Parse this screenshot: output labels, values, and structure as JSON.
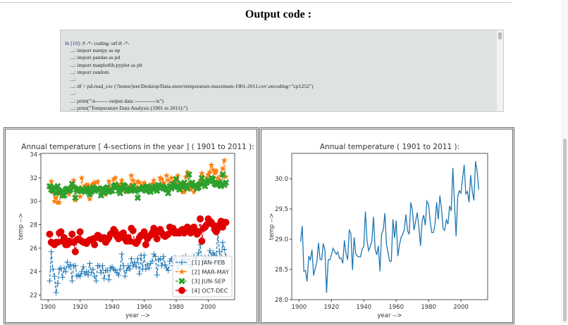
{
  "page": {
    "title": "Output code :",
    "code_lines": [
      {
        "prompt": "In [10]",
        "text": ": # -*- coding: utf-8 -*-"
      },
      {
        "prompt": "",
        "text": "    ...: import numpy as np"
      },
      {
        "prompt": "",
        "text": "    ...: import pandas as pd"
      },
      {
        "prompt": "",
        "text": "    ...: import matplotlib.pyplot as plt"
      },
      {
        "prompt": "",
        "text": "    ...: import random"
      },
      {
        "prompt": "",
        "text": "    ...:"
      },
      {
        "prompt": "",
        "text": "    ...: df = pd.read_csv ('/home/jeet/Desktop/Data-store/temperature-maximum-1901-2011.csv',encoding=\"cp1252\")"
      },
      {
        "prompt": "",
        "text": "    ...:"
      },
      {
        "prompt": "",
        "text": "    ...: print(\"\\n------- output data :-----------\\n\")"
      },
      {
        "prompt": "",
        "text": "    ...: print(\"Temperature Data Analysis (1901 to 2011):\")"
      }
    ]
  },
  "chart_data": [
    {
      "type": "line",
      "title": "Annual temperature [ 4-sections in the year ] ( 1901 to 2011 ):",
      "xlabel": "year -->",
      "ylabel": "temp -->",
      "xlim": [
        1895.5,
        2016.5
      ],
      "ylim": [
        21.6,
        34.1
      ],
      "xticks": [
        1900,
        1920,
        1940,
        1960,
        1980,
        2000
      ],
      "yticks": [
        22,
        24,
        26,
        28,
        30,
        32,
        34
      ],
      "legend_position": "lower-right",
      "x_start": 1901,
      "series": [
        {
          "name": "[1] JAN-FEB",
          "color": "#1f77b4",
          "marker": "plus",
          "linestyle": "dashed",
          "values": [
            23.2,
            25.7,
            24.2,
            23.6,
            22.2,
            23.0,
            24.2,
            24.3,
            23.5,
            24.3,
            24.0,
            24.8,
            24.4,
            24.6,
            23.2,
            24.5,
            24.5,
            23.6,
            23.7,
            23.6,
            24.0,
            24.4,
            23.8,
            24.0,
            23.7,
            24.7,
            23.9,
            24.2,
            23.6,
            23.2,
            24.5,
            24.5,
            23.9,
            24.5,
            23.4,
            24.1,
            24.1,
            23.3,
            24.3,
            24.4,
            24.2,
            24.1,
            23.9,
            23.7,
            24.2,
            25.5,
            24.5,
            23.6,
            24.1,
            24.5,
            24.2,
            25.1,
            24.5,
            24.8,
            24.4,
            25.1,
            23.8,
            25.4,
            24.2,
            25.4,
            24.2,
            24.6,
            24.3,
            24.7,
            24.9,
            25.5,
            25.3,
            23.7,
            25.0,
            25.1,
            24.5,
            25.3,
            24.6,
            24.3,
            24.1,
            24.9,
            25.1,
            24.5,
            25.2,
            25.0,
            24.3,
            24.8,
            24.6,
            25.2,
            24.8,
            25.3,
            24.6,
            25.1,
            24.4,
            24.8,
            25.3,
            25.1,
            25.2,
            25.6,
            26.3,
            24.8,
            24.9,
            25.2,
            24.9,
            25.2,
            25.8,
            25.3,
            25.6,
            25.4,
            25.3,
            27.4,
            25.7,
            24.9,
            26.5,
            25.9,
            25.3
          ]
        },
        {
          "name": "[2] MAR-MAY",
          "color": "#ff7f0e",
          "marker": "star",
          "linestyle": "dashed",
          "values": [
            31.2,
            31.7,
            30.8,
            30.0,
            30.3,
            29.9,
            29.9,
            30.7,
            30.6,
            30.9,
            31.0,
            31.0,
            30.6,
            31.1,
            31.4,
            31.8,
            30.1,
            30.9,
            31.0,
            30.4,
            32.0,
            31.1,
            31.3,
            31.4,
            31.4,
            30.2,
            31.2,
            31.5,
            31.6,
            31.0,
            31.7,
            31.1,
            31.0,
            30.9,
            31.1,
            30.6,
            31.2,
            31.7,
            31.1,
            31.2,
            31.9,
            32.0,
            31.5,
            31.2,
            31.4,
            31.8,
            31.0,
            31.1,
            30.8,
            31.0,
            31.3,
            32.2,
            31.8,
            31.5,
            31.2,
            31.7,
            31.6,
            31.2,
            31.4,
            31.6,
            31.0,
            31.2,
            30.9,
            31.1,
            31.5,
            31.8,
            31.4,
            31.0,
            31.3,
            32.0,
            31.9,
            31.6,
            31.2,
            32.2,
            31.8,
            31.4,
            32.0,
            31.6,
            31.7,
            31.9,
            32.2,
            31.5,
            31.2,
            30.8,
            30.8,
            32.1,
            32.5,
            31.5,
            31.0,
            31.3,
            30.8,
            31.2,
            31.4,
            31.4,
            31.8,
            32.4,
            31.5,
            31.3,
            32.0,
            32.3,
            32.5,
            33.1,
            32.7,
            32.4,
            32.6,
            32.0,
            31.8,
            32.2,
            32.8,
            33.5,
            32.1
          ]
        },
        {
          "name": "[3] JUN-SEP",
          "color": "#2ca02c",
          "marker": "x-filled",
          "linestyle": "dashed",
          "values": [
            31.3,
            31.0,
            30.9,
            31.2,
            30.7,
            31.3,
            30.9,
            30.8,
            30.5,
            30.5,
            31.0,
            31.1,
            30.9,
            31.0,
            31.5,
            31.2,
            30.3,
            31.0,
            31.1,
            30.9,
            30.9,
            31.0,
            30.8,
            31.1,
            31.0,
            30.6,
            30.8,
            31.2,
            30.9,
            31.0,
            31.1,
            31.0,
            30.5,
            31.1,
            30.7,
            31.0,
            31.2,
            30.8,
            30.9,
            30.9,
            31.3,
            31.4,
            31.2,
            30.9,
            30.7,
            31.1,
            31.4,
            31.3,
            30.9,
            31.0,
            31.1,
            30.9,
            31.3,
            30.9,
            31.0,
            30.3,
            31.1,
            31.0,
            31.2,
            31.1,
            30.9,
            31.3,
            31.1,
            30.8,
            31.2,
            31.0,
            31.3,
            30.9,
            31.4,
            31.1,
            31.3,
            31.2,
            31.1,
            31.0,
            30.7,
            31.3,
            31.1,
            31.5,
            31.2,
            31.9,
            31.3,
            31.0,
            31.5,
            31.2,
            31.6,
            31.3,
            31.1,
            32.3,
            31.4,
            31.6,
            31.3,
            31.4,
            31.1,
            31.2,
            31.5,
            32.0,
            31.5,
            31.3,
            31.6,
            31.8,
            31.7,
            32.0,
            31.9,
            31.5,
            31.4,
            31.6,
            31.5,
            31.3,
            32.3,
            31.4,
            31.6
          ]
        },
        {
          "name": "[4] OCT-DEC",
          "color": "#e00000",
          "marker": "circle",
          "linestyle": "dashed",
          "values": [
            27.2,
            26.5,
            26.4,
            26.3,
            26.5,
            26.5,
            27.3,
            27.4,
            26.6,
            26.9,
            26.3,
            26.3,
            26.6,
            26.5,
            27.2,
            26.5,
            25.7,
            26.7,
            26.8,
            27.4,
            26.6,
            26.5,
            26.5,
            26.4,
            26.6,
            26.7,
            26.7,
            26.8,
            26.3,
            26.9,
            27.1,
            27.0,
            26.8,
            26.8,
            26.9,
            26.5,
            26.7,
            26.9,
            27.2,
            27.3,
            27.6,
            27.4,
            27.0,
            26.8,
            27.1,
            27.2,
            27.3,
            26.8,
            26.6,
            26.9,
            26.6,
            27.7,
            27.5,
            26.5,
            26.4,
            26.6,
            26.9,
            27.1,
            27.1,
            27.4,
            26.3,
            26.8,
            27.0,
            27.1,
            27.3,
            27.7,
            27.2,
            26.8,
            27.4,
            27.6,
            27.3,
            27.1,
            27.0,
            27.1,
            27.2,
            27.8,
            27.6,
            27.7,
            27.3,
            27.4,
            27.3,
            27.3,
            27.5,
            27.6,
            27.3,
            27.6,
            27.8,
            27.5,
            27.3,
            27.6,
            27.8,
            27.5,
            27.2,
            27.4,
            28.5,
            26.6,
            27.7,
            27.8,
            28.0,
            28.5,
            28.3,
            28.2,
            28.0,
            27.6,
            27.4,
            27.7,
            28.0,
            28.3,
            27.8,
            28.2,
            28.2
          ]
        }
      ]
    },
    {
      "type": "line",
      "title": "Annual temperature ( 1901 to 2011 ):",
      "xlabel": "year -->",
      "ylabel": "temp -->",
      "xlim": [
        1895.5,
        2016.5
      ],
      "ylim": [
        28.0,
        30.42
      ],
      "xticks": [
        1900,
        1920,
        1940,
        1960,
        1980,
        2000
      ],
      "yticks": [
        "28.0",
        "28.5",
        "29.0",
        "29.5",
        "30.0"
      ],
      "x_start": 1901,
      "series": [
        {
          "color": "#1f77b4",
          "values": [
            28.96,
            29.22,
            28.47,
            28.48,
            28.3,
            28.72,
            28.66,
            28.83,
            28.4,
            28.52,
            28.62,
            28.94,
            28.67,
            28.66,
            28.93,
            28.82,
            28.11,
            28.66,
            28.66,
            28.74,
            28.85,
            28.8,
            28.75,
            28.79,
            28.68,
            28.69,
            28.6,
            28.98,
            28.76,
            28.66,
            29.15,
            29.1,
            28.49,
            29.03,
            28.76,
            28.72,
            28.71,
            28.71,
            28.84,
            28.88,
            29.46,
            28.98,
            28.81,
            28.88,
            28.97,
            29.37,
            28.84,
            28.74,
            28.89,
            28.47,
            29.09,
            29.15,
            29.43,
            28.92,
            28.77,
            28.63,
            28.64,
            29.33,
            29.02,
            29.31,
            28.72,
            28.9,
            29.03,
            29.08,
            29.16,
            29.41,
            29.14,
            29.08,
            29.61,
            29.48,
            29.15,
            29.3,
            29.44,
            29.2,
            28.89,
            29.3,
            29.4,
            29.23,
            29.63,
            29.58,
            29.3,
            29.11,
            29.11,
            29.25,
            29.61,
            29.33,
            29.72,
            29.5,
            29.17,
            29.15,
            29.32,
            29.25,
            29.55,
            29.47,
            30.18,
            29.6,
            29.05,
            29.7,
            29.8,
            29.76,
            30.0,
            30.23,
            29.75,
            29.79,
            29.61,
            30.06,
            29.8,
            29.64,
            30.29,
            30.12,
            29.82
          ]
        }
      ]
    }
  ]
}
